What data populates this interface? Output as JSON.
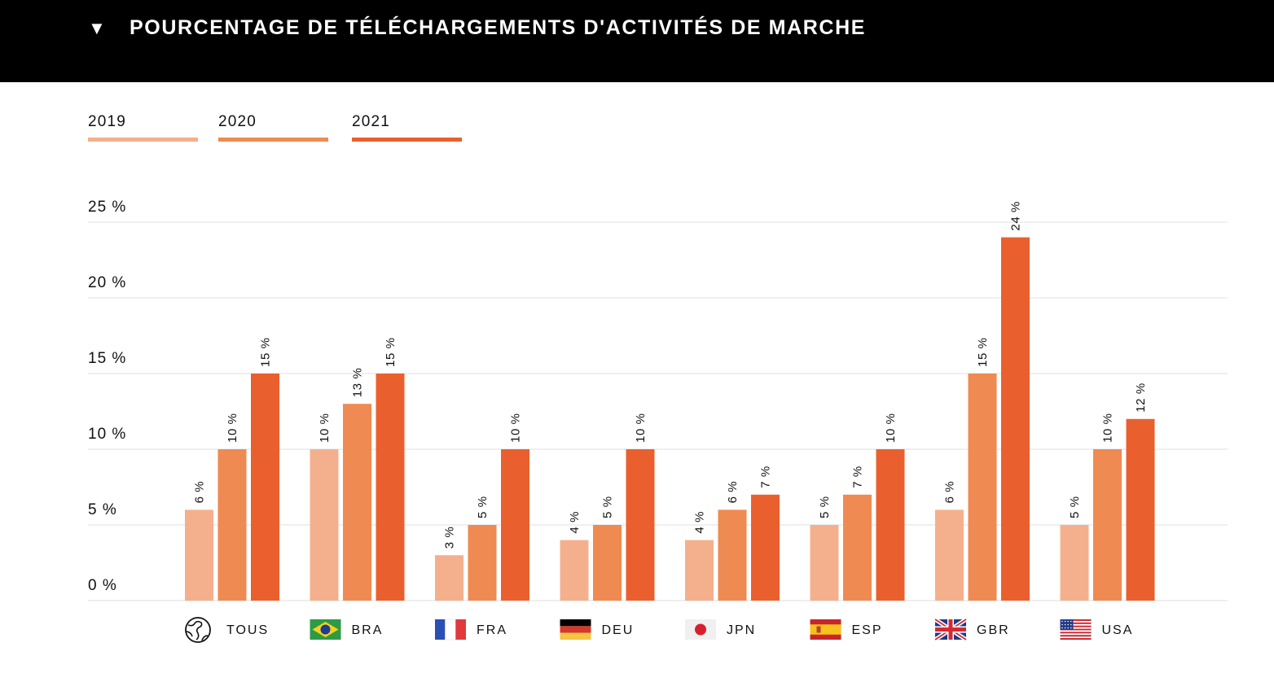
{
  "header": {
    "toggle_icon": "triangle-down-icon",
    "toggle_glyph": "▼",
    "title": "POURCENTAGE DE TÉLÉCHARGEMENTS D'ACTIVITÉS DE MARCHE"
  },
  "colors": {
    "2019": "#f4b08d",
    "2020": "#ef8a52",
    "2021": "#e9602e",
    "grid": "#e5e5e5",
    "header_bg": "#000000"
  },
  "chart_data": {
    "type": "bar",
    "title": "POURCENTAGE DE TÉLÉCHARGEMENTS D'ACTIVITÉS DE MARCHE",
    "categories": [
      "TOUS",
      "BRA",
      "FRA",
      "DEU",
      "JPN",
      "ESP",
      "GBR",
      "USA"
    ],
    "category_icons": [
      "globe-icon",
      "brazil-flag-icon",
      "france-flag-icon",
      "germany-flag-icon",
      "japan-flag-icon",
      "spain-flag-icon",
      "uk-flag-icon",
      "usa-flag-icon"
    ],
    "series": [
      {
        "name": "2019",
        "values": [
          6,
          10,
          3,
          4,
          4,
          5,
          6,
          5
        ]
      },
      {
        "name": "2020",
        "values": [
          10,
          13,
          5,
          5,
          6,
          7,
          15,
          10
        ]
      },
      {
        "name": "2021",
        "values": [
          15,
          15,
          10,
          10,
          7,
          10,
          24,
          12
        ]
      }
    ],
    "value_suffix": " %",
    "ylim": [
      0,
      25
    ],
    "yticks": [
      0,
      5,
      10,
      15,
      20,
      25
    ],
    "ytick_labels": [
      "0 %",
      "5 %",
      "10 %",
      "15 %",
      "20 %",
      "25 %"
    ],
    "xlabel": "",
    "ylabel": "",
    "grid": true,
    "legend_position": "top-left"
  }
}
